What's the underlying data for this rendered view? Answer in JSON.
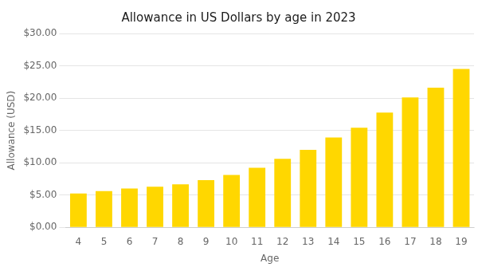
{
  "chart_data": {
    "type": "bar",
    "title": "Allowance in US Dollars by age in 2023",
    "xlabel": "Age",
    "ylabel": "Allowance (USD)",
    "categories": [
      "4",
      "5",
      "6",
      "7",
      "8",
      "9",
      "10",
      "11",
      "12",
      "13",
      "14",
      "15",
      "16",
      "17",
      "18",
      "19"
    ],
    "values": [
      5.23,
      5.62,
      6.0,
      6.3,
      6.65,
      7.3,
      8.1,
      9.2,
      10.6,
      12.0,
      13.9,
      15.4,
      17.75,
      20.1,
      21.6,
      24.5
    ],
    "color": "#FFD700",
    "ylim": [
      0,
      30
    ],
    "yticks": [
      {
        "value": 0,
        "label": "$0.00"
      },
      {
        "value": 5,
        "label": "$5.00"
      },
      {
        "value": 10,
        "label": "$10.00"
      },
      {
        "value": 15,
        "label": "$15.00"
      },
      {
        "value": 20,
        "label": "$20.00"
      },
      {
        "value": 25,
        "label": "$25.00"
      },
      {
        "value": 30,
        "label": "$30.00"
      }
    ],
    "grid": true
  }
}
